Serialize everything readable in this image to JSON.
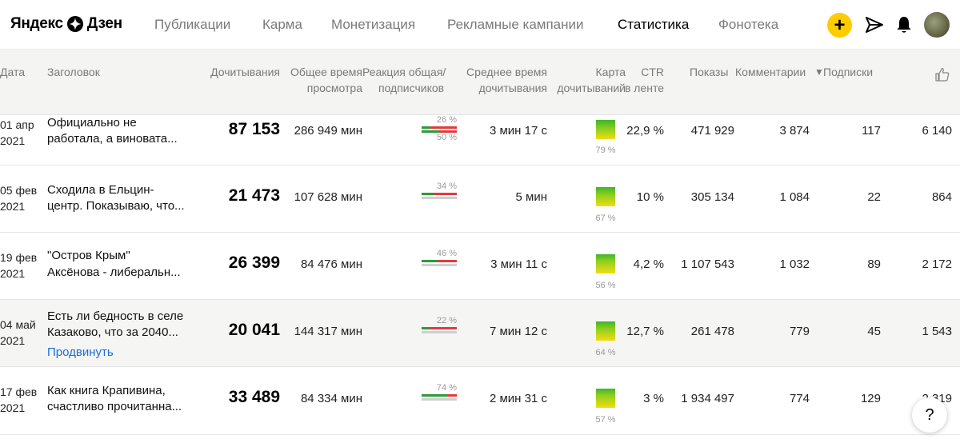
{
  "brand": {
    "left": "Яндекс",
    "right": "Дзен"
  },
  "nav": [
    "Публикации",
    "Карма",
    "Монетизация",
    "Рекламные кампании",
    "Статистика",
    "Фонотека"
  ],
  "actions": {
    "add_label": "+"
  },
  "columns": {
    "date": "Дата",
    "title": "Заголовок",
    "reads": "Дочитывания",
    "time_l1": "Общее время",
    "time_l2": "просмотра",
    "react_l1": "Реакция общая/",
    "react_l2": "подписчиков",
    "avg_l1": "Среднее время",
    "avg_l2": "дочитывания",
    "map_l1": "Карта",
    "map_l2": "дочитываний",
    "ctr_l1": "CTR",
    "ctr_l2": "в ленте",
    "shows": "Показы",
    "comments": "Комментарии",
    "subs": "Подписки"
  },
  "rows": [
    {
      "date_l1": "01 апр",
      "date_l2": "2021",
      "title_l1": "Официально не",
      "title_l2": "работала, а виновата...",
      "reads": "87 153",
      "total_time": "286 949 мин",
      "react_top": "26 %",
      "react_bottom": "50 %",
      "react_top_value": 26,
      "react_bottom_value": 50,
      "avg_time": "3 мин 17 с",
      "map_pct": "79 %",
      "map_value": 79,
      "ctr": "22,9 %",
      "shows": "471 929",
      "comments": "3 874",
      "subs": "117",
      "likes": "6 140"
    },
    {
      "date_l1": "05 фев",
      "date_l2": "2021",
      "title_l1": "Сходила в Ельцин-",
      "title_l2": "центр. Показываю, что...",
      "reads": "21 473",
      "total_time": "107 628 мин",
      "react_top": "34 %",
      "react_top_value": 34,
      "avg_time": "5 мин",
      "map_pct": "67 %",
      "map_value": 67,
      "ctr": "10 %",
      "shows": "305 134",
      "comments": "1 084",
      "subs": "22",
      "likes": "864"
    },
    {
      "date_l1": "19 фев",
      "date_l2": "2021",
      "title_l1": "\"Остров Крым\"",
      "title_l2": "Аксёнова - либеральн...",
      "reads": "26 399",
      "total_time": "84 476 мин",
      "react_top": "46 %",
      "react_top_value": 46,
      "avg_time": "3 мин 11 с",
      "map_pct": "56 %",
      "map_value": 56,
      "ctr": "4,2 %",
      "shows": "1 107 543",
      "comments": "1 032",
      "subs": "89",
      "likes": "2 172"
    },
    {
      "date_l1": "04 май",
      "date_l2": "2021",
      "title_l1": "Есть ли бедность в селе",
      "title_l2": "Казаково, что за 2040...",
      "promo": "Продвинуть",
      "reads": "20 041",
      "total_time": "144 317 мин",
      "react_top": "22 %",
      "react_top_value": 22,
      "avg_time": "7 мин 12 с",
      "map_pct": "64 %",
      "map_value": 64,
      "ctr": "12,7 %",
      "shows": "261 478",
      "comments": "779",
      "subs": "45",
      "likes": "1 543"
    },
    {
      "date_l1": "17 фев",
      "date_l2": "2021",
      "title_l1": "Как книга Крапивина,",
      "title_l2": "счастливо прочитанна...",
      "reads": "33 489",
      "total_time": "84 334 мин",
      "react_top": "74 %",
      "react_top_value": 74,
      "avg_time": "2 мин 31 с",
      "map_pct": "57 %",
      "map_value": 57,
      "ctr": "3 %",
      "shows": "1 934 497",
      "comments": "774",
      "subs": "129",
      "likes": "2 319"
    }
  ],
  "help_label": "?",
  "colors": {
    "accent": "#ffcc00",
    "link": "#1a6ed8",
    "positive": "#2e9a3a",
    "negative": "#e23b3b"
  }
}
